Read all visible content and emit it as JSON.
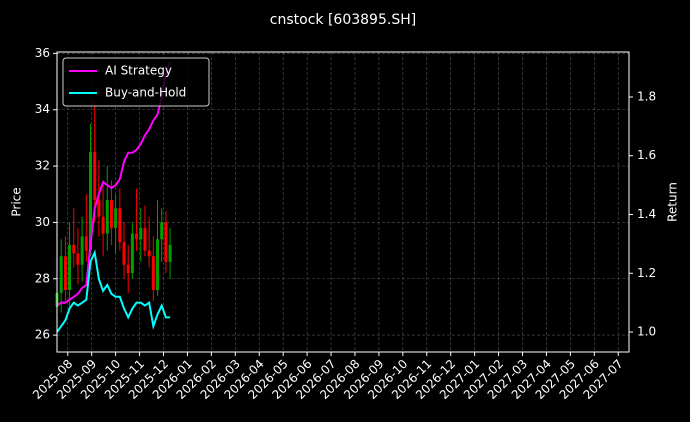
{
  "chart_data": {
    "type": "candlestick",
    "title": "cnstock [603895.SH]",
    "ylabel": "Price",
    "y2label": "Return",
    "x": [
      -0.45,
      -0.275,
      -0.1,
      0.075,
      0.25,
      0.425,
      0.6,
      0.775,
      0.95,
      1.125,
      1.3,
      1.475,
      1.65,
      1.825,
      2.0,
      2.175,
      2.35,
      2.525,
      2.7,
      2.875,
      3.05,
      3.225,
      3.4,
      3.575,
      3.75,
      3.925,
      4.1,
      4.275
    ],
    "open": [
      27.0,
      27.5,
      28.8,
      27.6,
      29.2,
      28.9,
      28.5,
      29.5,
      29.0,
      32.5,
      30.8,
      30.2,
      29.6,
      30.8,
      29.8,
      30.5,
      29.3,
      28.5,
      28.2,
      29.6,
      29.4,
      29.8,
      29.0,
      28.8,
      27.6,
      29.4,
      30.0,
      28.6
    ],
    "high": [
      28.2,
      29.4,
      29.5,
      30.0,
      30.5,
      29.8,
      30.2,
      31.0,
      33.5,
      34.3,
      32.2,
      31.5,
      32.0,
      31.5,
      31.0,
      31.2,
      30.0,
      29.2,
      30.0,
      31.2,
      30.5,
      30.6,
      30.2,
      29.5,
      30.8,
      30.5,
      30.4,
      29.8
    ],
    "low": [
      26.4,
      26.8,
      27.2,
      27.0,
      28.4,
      27.8,
      27.9,
      28.6,
      28.8,
      30.0,
      29.5,
      28.8,
      29.0,
      29.2,
      28.9,
      29.0,
      28.0,
      27.5,
      28.0,
      29.0,
      28.6,
      28.8,
      28.4,
      27.2,
      27.4,
      28.6,
      28.2,
      28.0
    ],
    "close": [
      27.5,
      28.8,
      27.6,
      29.2,
      28.9,
      28.5,
      29.5,
      29.0,
      32.5,
      30.8,
      30.2,
      29.6,
      30.8,
      29.8,
      30.5,
      29.3,
      28.5,
      28.2,
      29.6,
      29.4,
      29.8,
      29.0,
      28.8,
      27.6,
      29.4,
      30.0,
      28.6,
      29.2
    ],
    "up_color": "#00a000",
    "down_color": "#ff0000",
    "series": [
      {
        "name": "AI Strategy",
        "color": "#ff00ff",
        "axis": "y2",
        "values": [
          1.09,
          1.1,
          1.1,
          1.11,
          1.12,
          1.13,
          1.15,
          1.16,
          1.3,
          1.42,
          1.47,
          1.51,
          1.5,
          1.49,
          1.5,
          1.52,
          1.58,
          1.61,
          1.61,
          1.62,
          1.64,
          1.67,
          1.69,
          1.72,
          1.74,
          1.8,
          1.88,
          1.92
        ]
      },
      {
        "name": "Buy-and-Hold",
        "color": "#00ffff",
        "axis": "y2",
        "values": [
          1.0,
          1.02,
          1.04,
          1.08,
          1.1,
          1.09,
          1.1,
          1.11,
          1.24,
          1.27,
          1.18,
          1.14,
          1.16,
          1.13,
          1.12,
          1.12,
          1.08,
          1.05,
          1.08,
          1.1,
          1.1,
          1.09,
          1.1,
          1.02,
          1.06,
          1.09,
          1.05,
          1.05
        ]
      }
    ],
    "xlim": [
      -0.45,
      23.45
    ],
    "xticks": [
      {
        "value": 0,
        "label": "2025-08"
      },
      {
        "value": 1,
        "label": "2025-09"
      },
      {
        "value": 2,
        "label": "2025-10"
      },
      {
        "value": 3,
        "label": "2025-11"
      },
      {
        "value": 4,
        "label": "2025-12"
      },
      {
        "value": 5,
        "label": "2026-01"
      },
      {
        "value": 6,
        "label": "2026-02"
      },
      {
        "value": 7,
        "label": "2026-03"
      },
      {
        "value": 8,
        "label": "2026-04"
      },
      {
        "value": 9,
        "label": "2026-05"
      },
      {
        "value": 10,
        "label": "2026-06"
      },
      {
        "value": 11,
        "label": "2026-07"
      },
      {
        "value": 12,
        "label": "2026-08"
      },
      {
        "value": 13,
        "label": "2026-09"
      },
      {
        "value": 14,
        "label": "2026-10"
      },
      {
        "value": 15,
        "label": "2026-11"
      },
      {
        "value": 16,
        "label": "2026-12"
      },
      {
        "value": 17,
        "label": "2027-01"
      },
      {
        "value": 18,
        "label": "2027-02"
      },
      {
        "value": 19,
        "label": "2027-03"
      },
      {
        "value": 20,
        "label": "2027-04"
      },
      {
        "value": 21,
        "label": "2027-05"
      },
      {
        "value": 22,
        "label": "2027-06"
      },
      {
        "value": 23,
        "label": "2027-07"
      }
    ],
    "ylim": [
      25.4,
      36.05
    ],
    "yticks": [
      26,
      28,
      30,
      32,
      34,
      36
    ],
    "y2lim": [
      0.932,
      1.953
    ],
    "y2ticks": [
      {
        "value": 1,
        "label": "1.0"
      },
      1.2,
      1.4,
      1.6,
      1.8
    ],
    "grid": true,
    "legend": "upper-left"
  }
}
